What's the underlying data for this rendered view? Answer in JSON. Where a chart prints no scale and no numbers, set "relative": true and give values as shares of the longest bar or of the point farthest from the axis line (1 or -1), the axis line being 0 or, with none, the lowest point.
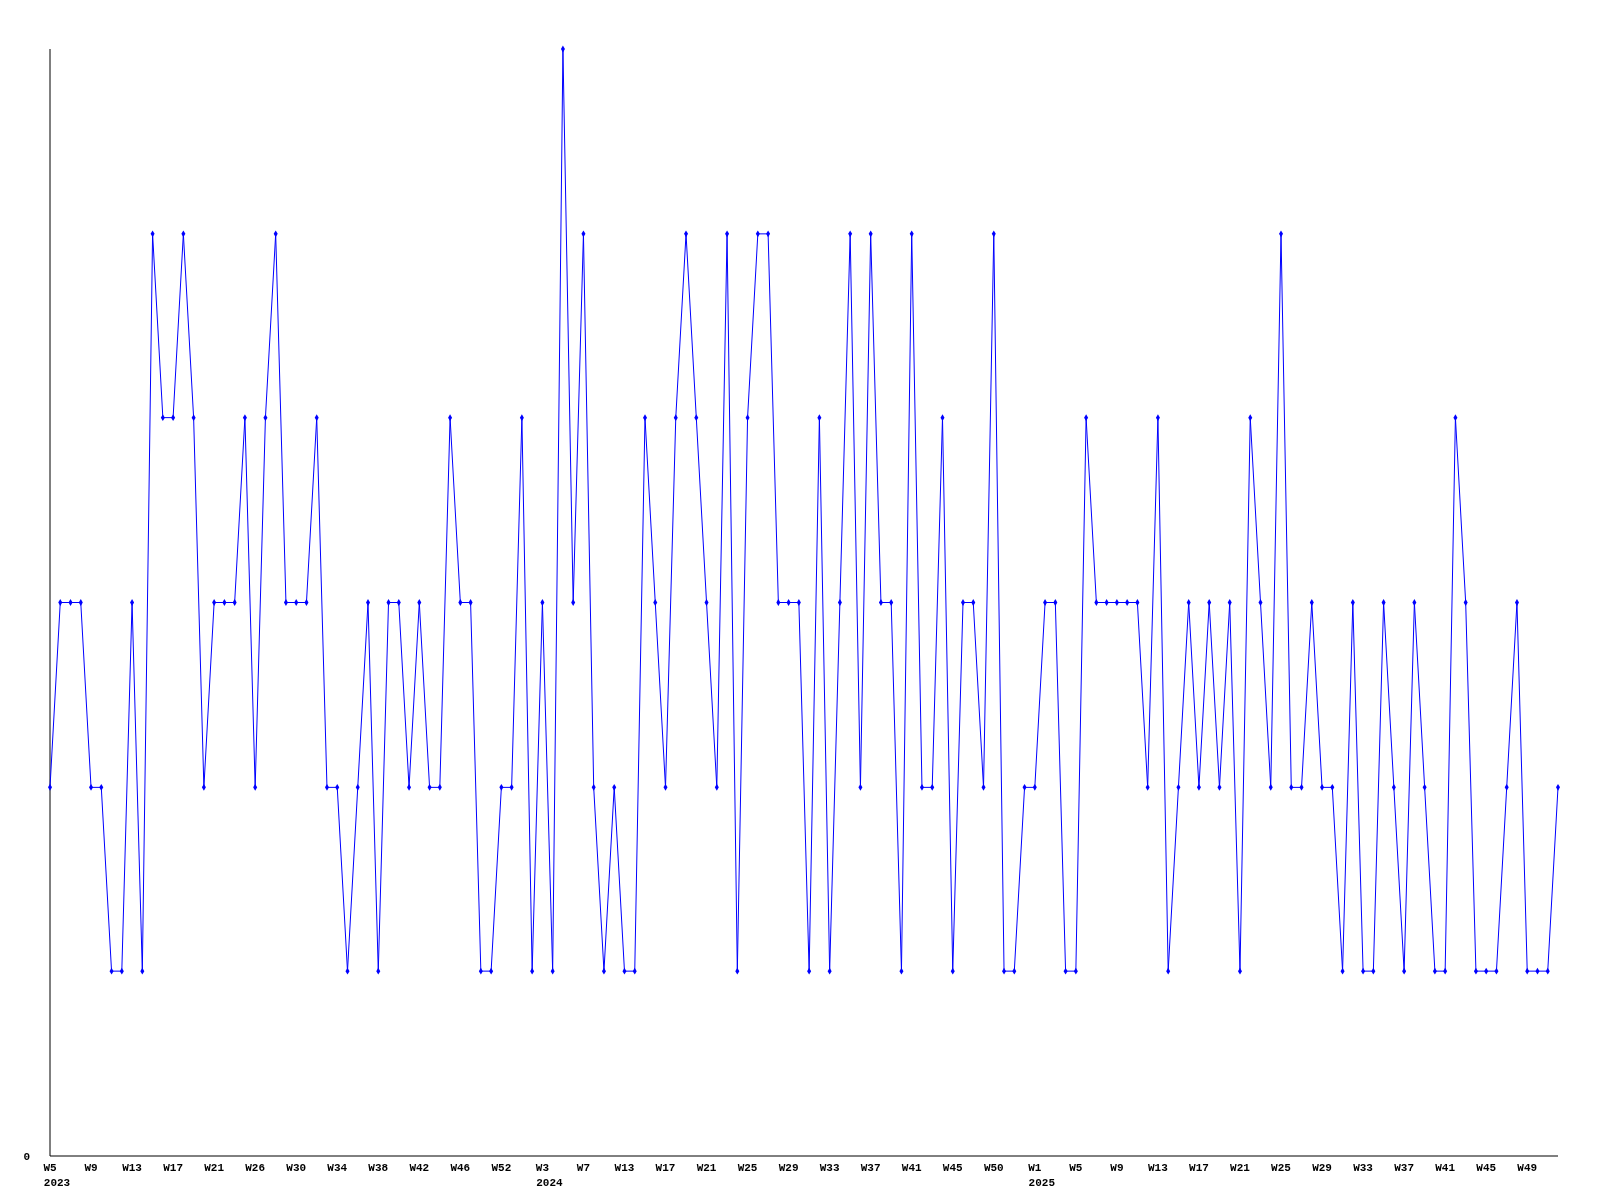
{
  "chart_data": {
    "type": "line",
    "relative": true,
    "marker": "diamond",
    "line_style": "solid",
    "legend": false,
    "annotations": [
      "0",
      "2023",
      "2024",
      "2025"
    ],
    "categories": [
      "W5",
      null,
      null,
      null,
      "W9",
      null,
      null,
      null,
      "W13",
      null,
      null,
      null,
      "W17",
      null,
      null,
      null,
      "W21",
      null,
      null,
      null,
      "W26",
      null,
      null,
      null,
      "W30",
      null,
      null,
      null,
      "W34",
      null,
      null,
      null,
      "W38",
      null,
      null,
      null,
      "W42",
      null,
      null,
      null,
      "W46",
      null,
      null,
      null,
      "W52",
      null,
      null,
      null,
      "W3",
      null,
      null,
      null,
      "W7",
      null,
      null,
      null,
      "W13",
      null,
      null,
      null,
      "W17",
      null,
      null,
      null,
      "W21",
      null,
      null,
      null,
      "W25",
      null,
      null,
      null,
      "W29",
      null,
      null,
      null,
      "W33",
      null,
      null,
      null,
      "W37",
      null,
      null,
      null,
      "W41",
      null,
      null,
      null,
      "W45",
      null,
      null,
      null,
      "W50",
      null,
      null,
      null,
      "W1",
      null,
      null,
      null,
      "W5",
      null,
      null,
      null,
      "W9",
      null,
      null,
      null,
      "W13",
      null,
      null,
      null,
      "W17",
      null,
      null,
      null,
      "W21",
      null,
      null,
      null,
      "W25",
      null,
      null,
      null,
      "W29",
      null,
      null,
      null,
      "W33",
      null,
      null,
      null,
      "W37",
      null,
      null,
      null,
      "W41",
      null,
      null,
      null,
      "W45",
      null,
      null,
      null,
      "W49",
      null,
      null,
      null
    ],
    "series": [
      {
        "color": "#0000ff",
        "values": [
          0.333,
          0.5,
          0.5,
          0.5,
          0.333,
          0.333,
          0.167,
          0.167,
          0.5,
          0.167,
          0.833,
          0.667,
          0.667,
          0.833,
          0.667,
          0.333,
          0.5,
          0.5,
          0.5,
          0.667,
          0.333,
          0.667,
          0.833,
          0.5,
          0.5,
          0.5,
          0.667,
          0.333,
          0.333,
          0.167,
          0.333,
          0.5,
          0.167,
          0.5,
          0.5,
          0.333,
          0.5,
          0.333,
          0.333,
          0.667,
          0.5,
          0.5,
          0.167,
          0.167,
          0.333,
          0.333,
          0.667,
          0.167,
          0.5,
          0.167,
          1,
          0.5,
          0.833,
          0.333,
          0.167,
          0.333,
          0.167,
          0.167,
          0.667,
          0.5,
          0.333,
          0.667,
          0.833,
          0.667,
          0.5,
          0.333,
          0.833,
          0.167,
          0.667,
          0.833,
          0.833,
          0.5,
          0.5,
          0.5,
          0.167,
          0.667,
          0.167,
          0.5,
          0.833,
          0.333,
          0.833,
          0.5,
          0.5,
          0.167,
          0.833,
          0.333,
          0.333,
          0.667,
          0.167,
          0.5,
          0.5,
          0.333,
          0.833,
          0.167,
          0.167,
          0.333,
          0.333,
          0.5,
          0.5,
          0.167,
          0.167,
          0.667,
          0.5,
          0.5,
          0.5,
          0.5,
          0.5,
          0.333,
          0.667,
          0.167,
          0.333,
          0.5,
          0.333,
          0.5,
          0.333,
          0.5,
          0.167,
          0.667,
          0.5,
          0.333,
          0.833,
          0.333,
          0.333,
          0.5,
          0.333,
          0.333,
          0.167,
          0.5,
          0.167,
          0.167,
          0.5,
          0.333,
          0.167,
          0.5,
          0.333,
          0.167,
          0.167,
          0.667,
          0.5,
          0.167,
          0.167,
          0.167,
          0.333,
          0.5,
          0.167,
          0.167,
          0.167,
          0.333
        ]
      }
    ]
  }
}
